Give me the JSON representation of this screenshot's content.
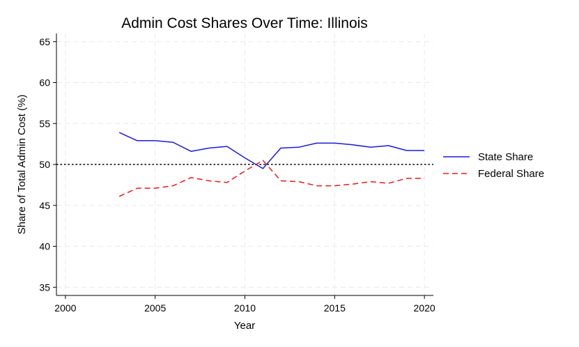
{
  "chart_data": {
    "type": "line",
    "title": "Admin Cost Shares Over Time: Illinois",
    "xlabel": "Year",
    "ylabel": "Share of Total Admin Cost (%)",
    "xlim": [
      1999.5,
      2020.5
    ],
    "ylim": [
      34,
      66
    ],
    "xticks": [
      2000,
      2005,
      2010,
      2015,
      2020
    ],
    "yticks": [
      35,
      40,
      45,
      50,
      55,
      60,
      65
    ],
    "grid": true,
    "legend_position": "right",
    "reference_line": {
      "y": 50,
      "style": "dotted",
      "color": "#000000"
    },
    "x": [
      2003,
      2004,
      2005,
      2006,
      2007,
      2008,
      2009,
      2010,
      2011,
      2012,
      2013,
      2014,
      2015,
      2016,
      2017,
      2018,
      2019,
      2020
    ],
    "series": [
      {
        "name": "State Share",
        "color": "#1a1adb",
        "dash": "solid",
        "values": [
          53.9,
          52.9,
          52.9,
          52.7,
          51.6,
          52.0,
          52.2,
          50.8,
          49.5,
          52.0,
          52.1,
          52.6,
          52.6,
          52.4,
          52.1,
          52.3,
          51.7,
          51.7
        ]
      },
      {
        "name": "Federal Share",
        "color": "#e41a1c",
        "dash": "dashed",
        "values": [
          46.1,
          47.1,
          47.1,
          47.4,
          48.4,
          48.0,
          47.8,
          49.2,
          50.5,
          48.0,
          47.9,
          47.4,
          47.4,
          47.6,
          47.9,
          47.7,
          48.3,
          48.3
        ]
      }
    ]
  }
}
